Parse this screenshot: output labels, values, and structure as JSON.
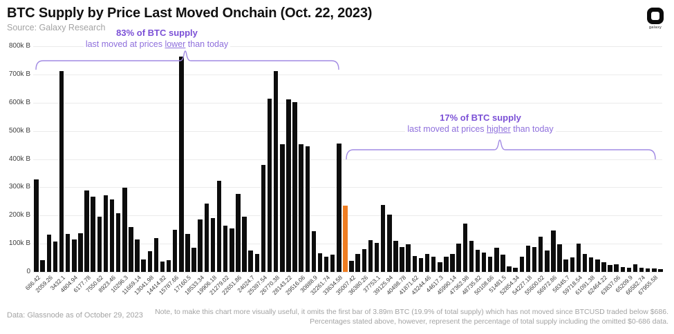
{
  "header": {
    "title": "BTC Supply by Price Last Moved Onchain (Oct. 22, 2023)",
    "source": "Source: Galaxy Research",
    "logo_label": "galaxy"
  },
  "annotations": {
    "lower": {
      "headline": "83% of BTC supply",
      "line_prefix": "last moved at prices ",
      "line_underlined": "lower",
      "line_suffix": " than today"
    },
    "higher": {
      "headline": "17% of BTC supply",
      "line_prefix": "last moved at prices ",
      "line_underlined": "higher",
      "line_suffix": " than today"
    }
  },
  "footer": {
    "data_source": "Data: Glassnode as of October 29, 2023",
    "note_line1": "Note, to make this chart more visually useful, it omits  the first bar of 3.89m BTC (19.9% of total supply) which has not moved since BTCUSD traded below $686.",
    "note_line2": "Percentages stated above, however, represent the percentage of total supply including the omitted $0-686 data."
  },
  "colors": {
    "bar_black": "#0d0d0d",
    "bar_orange": "#ef7d21",
    "annotation_bold_purple": "#7b50d6",
    "annotation_purple": "#8e6fdc",
    "bracket_purple": "#a18ae3",
    "grid_gray": "#ebebeb",
    "axis_text": "#3d3d3d",
    "muted_text": "#a3a3a3"
  },
  "chart_data": {
    "type": "bar",
    "title": "BTC Supply by Price Last Moved Onchain (Oct. 22, 2023)",
    "ylim": [
      0,
      800000
    ],
    "y_tick_labels": [
      "800k ₿",
      "700k ₿",
      "600k ₿",
      "500k ₿",
      "400k ₿",
      "300k ₿",
      "200k ₿",
      "100k ₿",
      "0"
    ],
    "x_tick_labels": [
      "686.42",
      "2059.26",
      "3432.1",
      "4804.94",
      "6177.78",
      "7550.62",
      "8923.46",
      "10296.3",
      "11669.14",
      "13041.98",
      "14414.82",
      "15787.66",
      "17160.5",
      "18533.34",
      "19906.18",
      "21279.02",
      "22651.86",
      "24024.7",
      "25397.54",
      "26770.38",
      "28143.22",
      "29516.06",
      "30888.9",
      "32261.74",
      "33634.58",
      "35007.42",
      "36380.26",
      "37753.1",
      "39125.94",
      "40498.78",
      "41871.62",
      "43244.46",
      "44617.3",
      "45990.14",
      "47362.98",
      "48735.82",
      "50108.66",
      "51481.5",
      "52854.34",
      "54227.18",
      "55600.02",
      "56972.86",
      "58345.7",
      "59718.54",
      "61091.38",
      "62464.22",
      "63837.06",
      "65209.9",
      "66582.74",
      "67955.58"
    ],
    "values_unit": "thousand BTC",
    "values": [
      328,
      42,
      132,
      108,
      712,
      135,
      115,
      137,
      289,
      267,
      196,
      272,
      257,
      208,
      298,
      159,
      115,
      44,
      73,
      120,
      37,
      42,
      149,
      763,
      135,
      86,
      186,
      242,
      191,
      323,
      164,
      154,
      276,
      196,
      76,
      64,
      379,
      614,
      712,
      452,
      611,
      602,
      452,
      445,
      144,
      66,
      54,
      61,
      455,
      235,
      39,
      64,
      81,
      112,
      103,
      237,
      203,
      110,
      88,
      98,
      56,
      49,
      64,
      54,
      34,
      54,
      64,
      100,
      171,
      110,
      78,
      68,
      54,
      86,
      61,
      20,
      15,
      54,
      93,
      88,
      125,
      76,
      147,
      98,
      44,
      51,
      100,
      64,
      51,
      44,
      34,
      24,
      27,
      17,
      15,
      27,
      15,
      12,
      12,
      10
    ],
    "highlight_index": 49,
    "legend": "none",
    "grid": "horizontal"
  }
}
